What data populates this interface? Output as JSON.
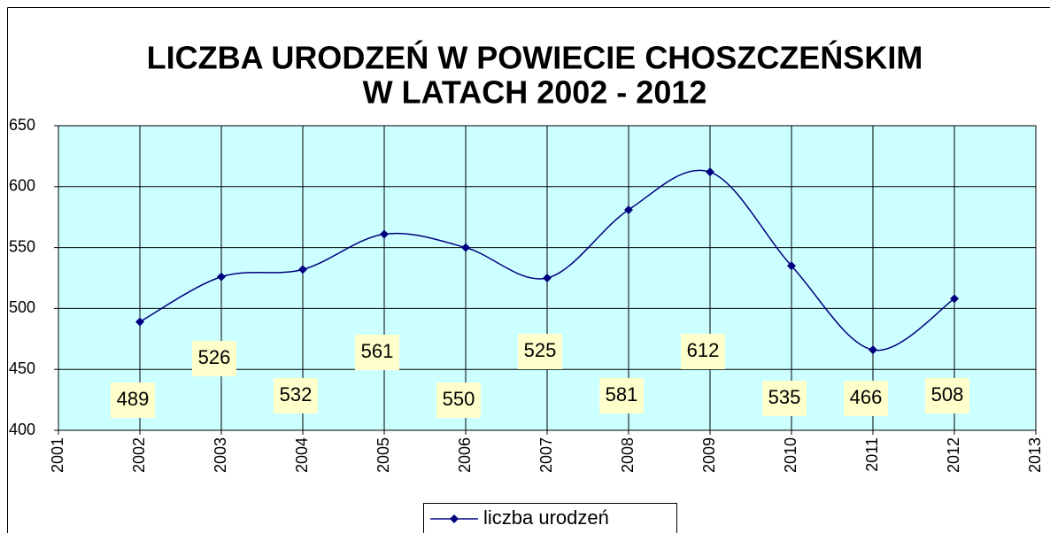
{
  "chart_data": {
    "type": "line",
    "title": [
      "LICZBA URODZEŃ W POWIECIE CHOSZCZEŃSKIM",
      "W LATACH 2002 - 2012"
    ],
    "x": [
      2002,
      2003,
      2004,
      2005,
      2006,
      2007,
      2008,
      2009,
      2010,
      2011,
      2012
    ],
    "series": [
      {
        "name": "liczba urodzeń",
        "color": "#000080",
        "values": [
          489,
          526,
          532,
          561,
          550,
          525,
          581,
          612,
          535,
          466,
          508
        ]
      }
    ],
    "xlim": [
      2001,
      2013
    ],
    "xticks": [
      2001,
      2002,
      2003,
      2004,
      2005,
      2006,
      2007,
      2008,
      2009,
      2010,
      2011,
      2012,
      2013
    ],
    "ylim": [
      400,
      650
    ],
    "yticks": [
      400,
      450,
      500,
      550,
      600,
      650
    ],
    "grid": true,
    "legend": "bottom"
  }
}
